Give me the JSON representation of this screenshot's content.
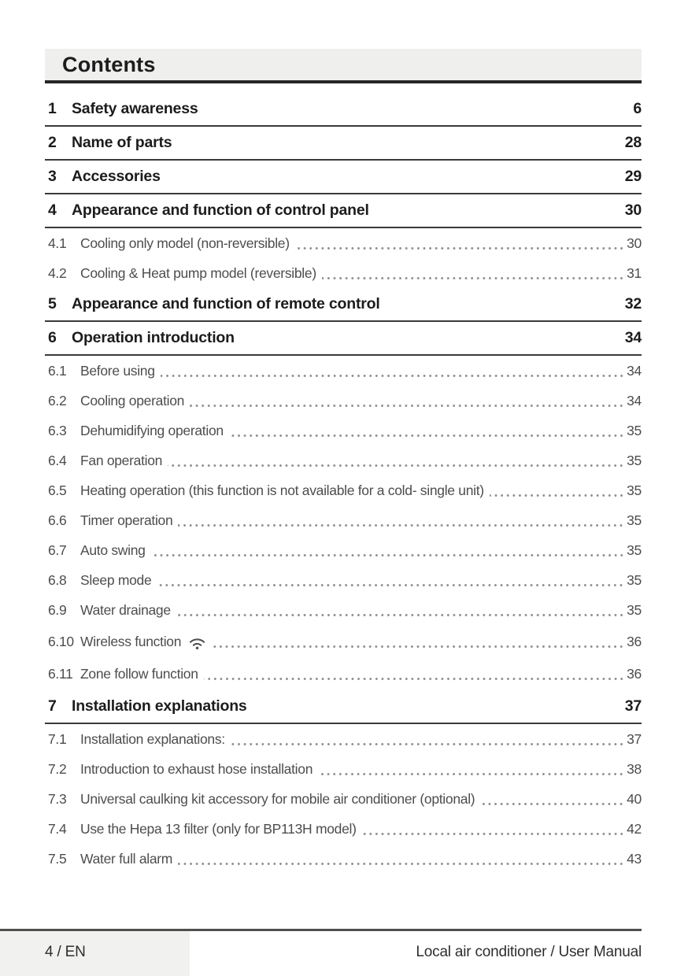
{
  "header": {
    "title": "Contents"
  },
  "toc": {
    "sections": [
      {
        "num": "1",
        "title": "Safety awareness",
        "page": "6",
        "subs": []
      },
      {
        "num": "2",
        "title": "Name of parts",
        "page": "28",
        "subs": []
      },
      {
        "num": "3",
        "title": "Accessories",
        "page": "29",
        "subs": []
      },
      {
        "num": "4",
        "title": "Appearance and function of control panel",
        "page": "30",
        "subs": [
          {
            "num": "4.1",
            "title": "Cooling only model (non-reversible)",
            "page": "30"
          },
          {
            "num": "4.2",
            "title": "Cooling & Heat pump model (reversible)",
            "page": "31"
          }
        ]
      },
      {
        "num": "5",
        "title": "Appearance and function of remote control",
        "page": "32",
        "subs": []
      },
      {
        "num": "6",
        "title": "Operation introduction",
        "page": "34",
        "subs": [
          {
            "num": "6.1",
            "title": "Before using",
            "page": "34"
          },
          {
            "num": "6.2",
            "title": "Cooling operation",
            "page": "34"
          },
          {
            "num": "6.3",
            "title": "Dehumidifying operation",
            "page": "35"
          },
          {
            "num": "6.4",
            "title": "Fan operation",
            "page": "35"
          },
          {
            "num": "6.5",
            "title": "Heating operation (this function is not available for a cold- single unit)",
            "page": "35"
          },
          {
            "num": "6.6",
            "title": "Timer operation",
            "page": "35"
          },
          {
            "num": "6.7",
            "title": "Auto swing",
            "page": "35"
          },
          {
            "num": "6.8",
            "title": "Sleep mode",
            "page": "35"
          },
          {
            "num": "6.9",
            "title": "Water drainage",
            "page": "35"
          },
          {
            "num": "6.10",
            "title": "Wireless function",
            "icon": "wifi-icon",
            "page": "36"
          },
          {
            "num": "6.11",
            "title": "Zone follow function",
            "page": "36"
          }
        ]
      },
      {
        "num": "7",
        "title": "Installation explanations",
        "page": "37",
        "subs": [
          {
            "num": "7.1",
            "title": "Installation explanations:",
            "page": "37"
          },
          {
            "num": "7.2",
            "title": "Introduction to exhaust hose installation",
            "page": "38"
          },
          {
            "num": "7.3",
            "title": "Universal caulking kit accessory for mobile air conditioner (optional)",
            "page": "40"
          },
          {
            "num": "7.4",
            "title": "Use the Hepa 13 filter (only for BP113H model)",
            "page": "42"
          },
          {
            "num": "7.5",
            "title": "Water full alarm",
            "page": "43"
          }
        ]
      }
    ]
  },
  "footer": {
    "page_label": "4 / EN",
    "doc_label": "Local air conditioner / User Manual"
  },
  "colors": {
    "header_bg": "#efefee",
    "header_border": "#262626",
    "section_text": "#1c1c1c",
    "subsection_text": "#4d4d4d",
    "footer_rule": "#4f4f4f",
    "footer_tab_bg": "#f1f1f0"
  }
}
